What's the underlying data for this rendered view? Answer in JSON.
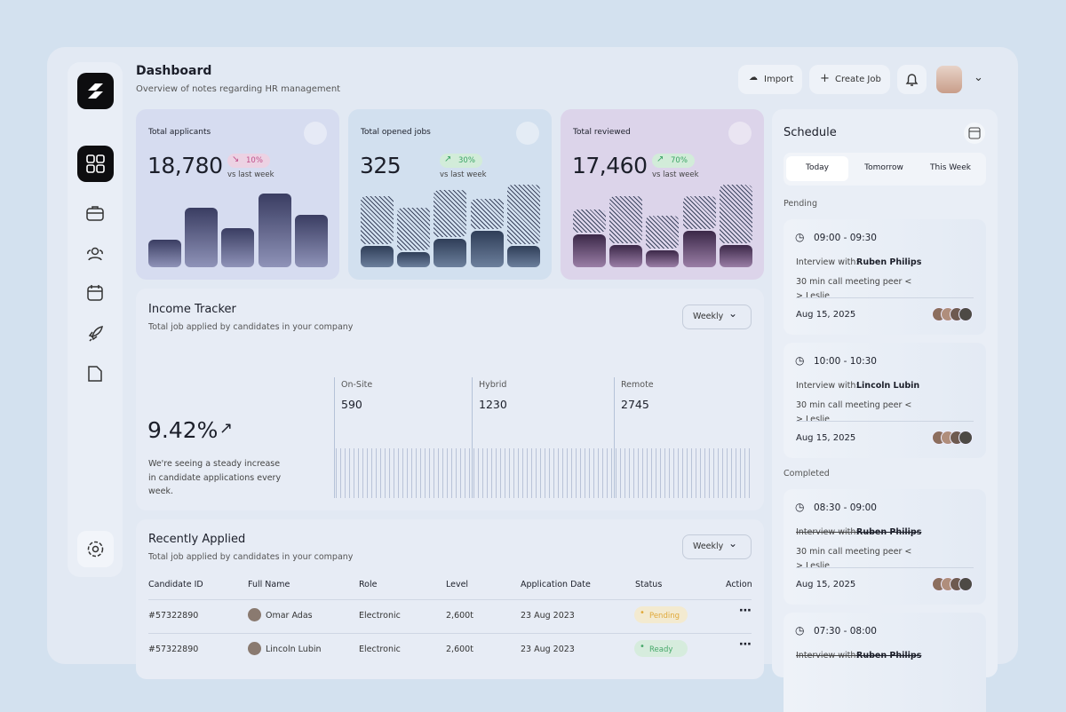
{
  "header": {
    "title": "Dashboard",
    "subtitle": "Overview of notes regarding HR management",
    "import": "Import",
    "create": "Create Job"
  },
  "stats": [
    {
      "label": "Total applicants",
      "value": "18,780",
      "change": "10%",
      "note": "vs last week"
    },
    {
      "label": "Total opened jobs",
      "value": "325",
      "change": "30%",
      "note": "vs last week"
    },
    {
      "label": "Total reviewed",
      "value": "17,460",
      "change": "70%",
      "note": "vs last week"
    }
  ],
  "income": {
    "title": "Income Tracker",
    "subtitle": "Total job applied by candidates in your company",
    "filter": "Weekly",
    "rate": "9.42%",
    "description": "We're seeing a steady increase in candidate applications every week.",
    "segments": [
      {
        "label": "On-Site",
        "value": 590
      },
      {
        "label": "Hybrid",
        "value": 1230
      },
      {
        "label": "Remote",
        "value": 2745
      }
    ]
  },
  "recent": {
    "title": "Recently Applied",
    "subtitle": "Total job applied by candidates in your company",
    "filter": "Weekly",
    "columns": [
      "Candidate ID",
      "Full Name",
      "Role",
      "Level",
      "Application Date",
      "Status",
      "Action"
    ],
    "rows": [
      [
        "#57322890",
        "Omar Adas",
        "Electronic",
        "2,600t",
        "23 Aug 2023",
        "Pending"
      ],
      [
        "#57322890",
        "Lincoln Lubin",
        "Electronic",
        "2,600t",
        "23 Aug 2023",
        "Ready"
      ]
    ]
  },
  "schedule": {
    "title": "Schedule",
    "tabs": [
      "Today",
      "Tomorrow",
      "This Week"
    ],
    "groups": [
      {
        "label": "Pending",
        "items": [
          {
            "time": "09:00 - 09:30",
            "prefix": "Interview with:",
            "name": "Ruben Philips",
            "desc": "30 min call meeting peer < > Leslie",
            "date": "Aug 15, 2025"
          },
          {
            "time": "10:00 - 10:30",
            "prefix": "Interview with:",
            "name": "Lincoln Lubin",
            "desc": "30 min call meeting peer < > Leslie",
            "date": "Aug 15, 2025"
          }
        ]
      },
      {
        "label": "Completed",
        "items": [
          {
            "time": "08:30 - 09:00",
            "prefix": "Interview with:",
            "name": "Ruben Philips",
            "desc": "30 min call meeting peer < > Leslie",
            "date": "Aug 15, 2025"
          },
          {
            "time": "07:30 - 08:00",
            "prefix": "Interview with:",
            "name": "Ruben Philips"
          }
        ]
      }
    ]
  }
}
